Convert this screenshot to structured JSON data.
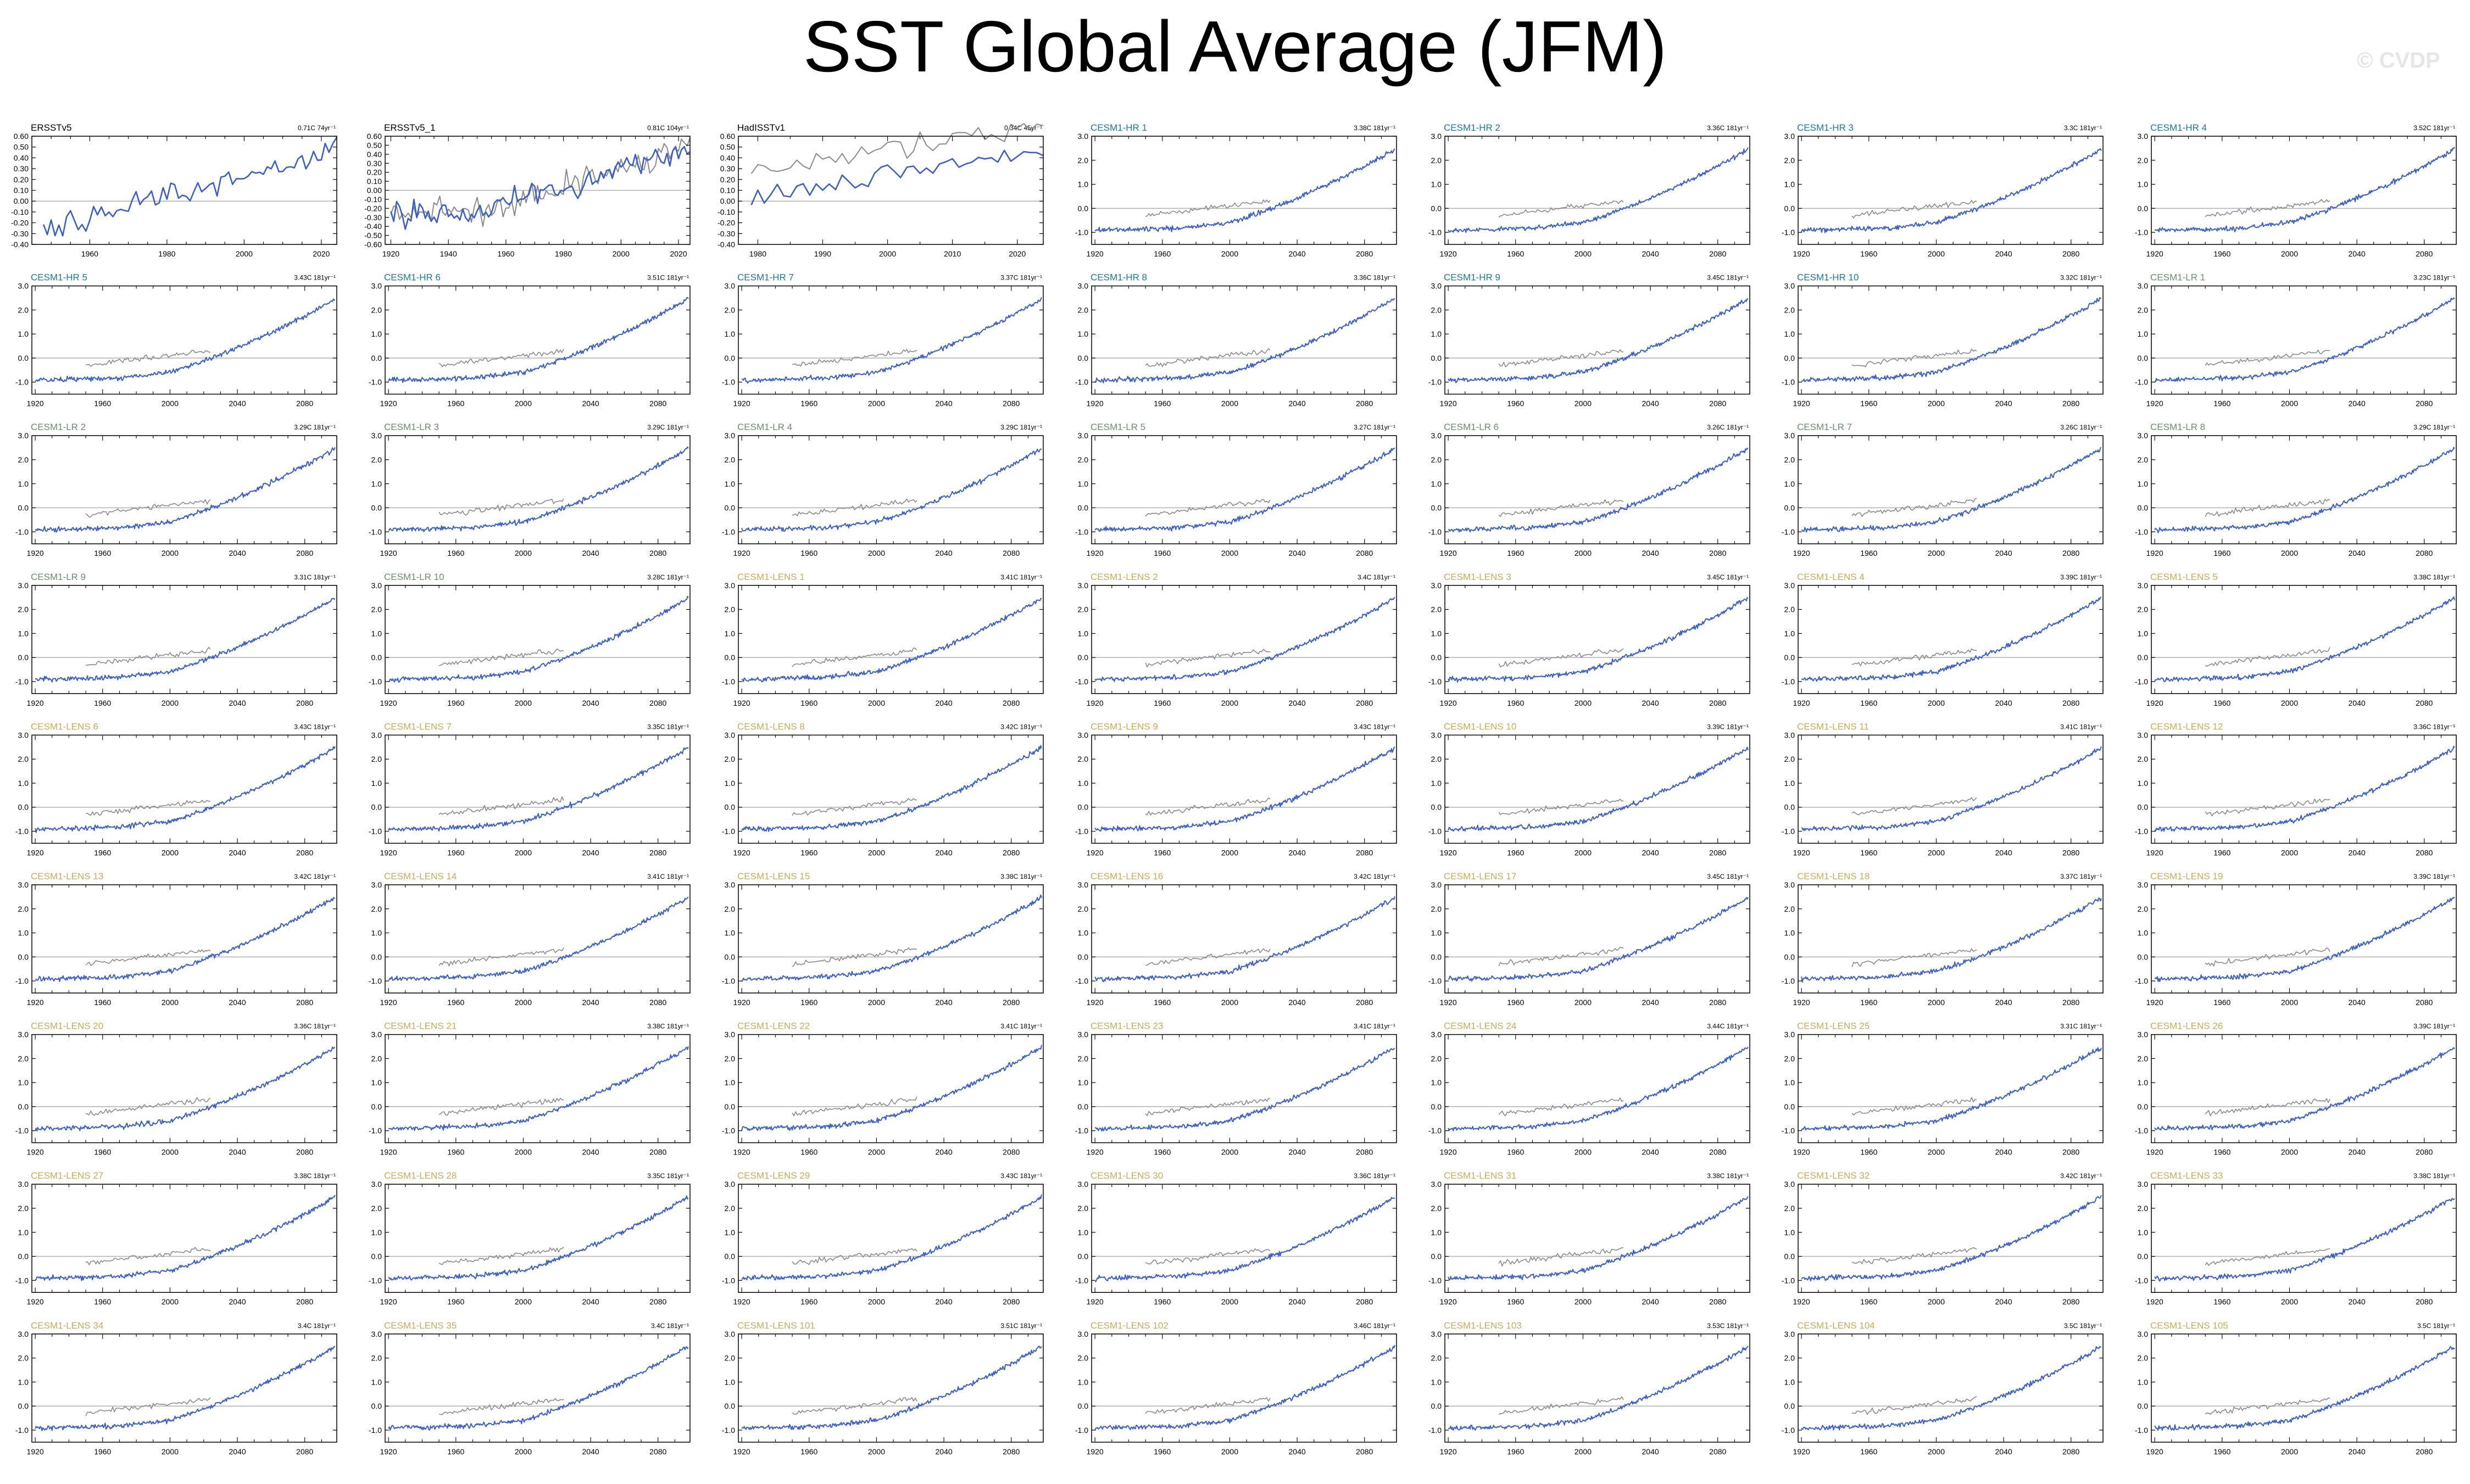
{
  "title": "SST Global Average (JFM)",
  "watermark": "© CVDP",
  "colors": {
    "series": "#3a5fcd",
    "obs_overlay": "#8a8a8a",
    "zero_line": "#b0b0b0",
    "obs_label": "#000000",
    "hr_label": "#1b7a9a",
    "lr_label": "#6b8f6e",
    "lens_label": "#c8ad55"
  },
  "chart_data": [
    {
      "type": "line",
      "name": "ERSSTv5",
      "trend": "0.71C 74yr⁻¹",
      "group": "obs",
      "xlim": [
        1945,
        2024
      ],
      "ylim": [
        -0.4,
        0.6
      ],
      "yticks": [
        -0.4,
        -0.3,
        -0.2,
        -0.1,
        0.0,
        0.1,
        0.2,
        0.3,
        0.4,
        0.5,
        0.6
      ],
      "yticklabels": [
        "-0.40",
        "-0.30",
        "-0.20",
        "-0.10",
        "0.00",
        "0.10",
        "0.20",
        "0.30",
        "0.40",
        "0.50",
        "0.60"
      ],
      "xticks": [
        1960,
        1980,
        2000,
        2020
      ]
    },
    {
      "type": "line",
      "name": "ERSSTv5_1",
      "trend": "0.81C 104yr⁻¹",
      "group": "obs",
      "xlim": [
        1918,
        2024
      ],
      "ylim": [
        -0.6,
        0.6
      ],
      "yticks": [
        -0.6,
        -0.5,
        -0.4,
        -0.3,
        -0.2,
        -0.1,
        0.0,
        0.1,
        0.2,
        0.3,
        0.4,
        0.5,
        0.6
      ],
      "yticklabels": [
        "-0.60",
        "-0.50",
        "-0.40",
        "-0.30",
        "-0.20",
        "-0.10",
        "0.00",
        "0.10",
        "0.20",
        "0.30",
        "0.40",
        "0.50",
        "0.60"
      ],
      "xticks": [
        1920,
        1940,
        1960,
        1980,
        2000,
        2020
      ]
    },
    {
      "type": "line",
      "name": "HadISSTv1",
      "trend": "0.34C 45yr⁻¹",
      "group": "obs",
      "xlim": [
        1977,
        2024
      ],
      "ylim": [
        -0.4,
        0.6
      ],
      "yticks": [
        -0.4,
        -0.3,
        -0.2,
        -0.1,
        0.0,
        0.1,
        0.2,
        0.3,
        0.4,
        0.5,
        0.6
      ],
      "yticklabels": [
        "-0.40",
        "-0.30",
        "-0.20",
        "-0.10",
        "0.00",
        "0.10",
        "0.20",
        "0.30",
        "0.40",
        "0.50",
        "0.60"
      ],
      "xticks": [
        1980,
        1990,
        2000,
        2010,
        2020
      ]
    },
    {
      "type": "line",
      "name": "CESM1-HR 1",
      "trend": "3.38C 181yr⁻¹",
      "group": "hr"
    },
    {
      "type": "line",
      "name": "CESM1-HR 2",
      "trend": "3.36C 181yr⁻¹",
      "group": "hr"
    },
    {
      "type": "line",
      "name": "CESM1-HR 3",
      "trend": "3.3C 181yr⁻¹",
      "group": "hr"
    },
    {
      "type": "line",
      "name": "CESM1-HR 4",
      "trend": "3.52C 181yr⁻¹",
      "group": "hr"
    },
    {
      "type": "line",
      "name": "CESM1-HR 5",
      "trend": "3.43C 181yr⁻¹",
      "group": "hr"
    },
    {
      "type": "line",
      "name": "CESM1-HR 6",
      "trend": "3.51C 181yr⁻¹",
      "group": "hr"
    },
    {
      "type": "line",
      "name": "CESM1-HR 7",
      "trend": "3.37C 181yr⁻¹",
      "group": "hr"
    },
    {
      "type": "line",
      "name": "CESM1-HR 8",
      "trend": "3.36C 181yr⁻¹",
      "group": "hr"
    },
    {
      "type": "line",
      "name": "CESM1-HR 9",
      "trend": "3.45C 181yr⁻¹",
      "group": "hr"
    },
    {
      "type": "line",
      "name": "CESM1-HR 10",
      "trend": "3.32C 181yr⁻¹",
      "group": "hr"
    },
    {
      "type": "line",
      "name": "CESM1-LR 1",
      "trend": "3.23C 181yr⁻¹",
      "group": "lr"
    },
    {
      "type": "line",
      "name": "CESM1-LR 2",
      "trend": "3.29C 181yr⁻¹",
      "group": "lr"
    },
    {
      "type": "line",
      "name": "CESM1-LR 3",
      "trend": "3.29C 181yr⁻¹",
      "group": "lr"
    },
    {
      "type": "line",
      "name": "CESM1-LR 4",
      "trend": "3.29C 181yr⁻¹",
      "group": "lr"
    },
    {
      "type": "line",
      "name": "CESM1-LR 5",
      "trend": "3.27C 181yr⁻¹",
      "group": "lr"
    },
    {
      "type": "line",
      "name": "CESM1-LR 6",
      "trend": "3.26C 181yr⁻¹",
      "group": "lr"
    },
    {
      "type": "line",
      "name": "CESM1-LR 7",
      "trend": "3.26C 181yr⁻¹",
      "group": "lr"
    },
    {
      "type": "line",
      "name": "CESM1-LR 8",
      "trend": "3.29C 181yr⁻¹",
      "group": "lr"
    },
    {
      "type": "line",
      "name": "CESM1-LR 9",
      "trend": "3.31C 181yr⁻¹",
      "group": "lr"
    },
    {
      "type": "line",
      "name": "CESM1-LR 10",
      "trend": "3.28C 181yr⁻¹",
      "group": "lr"
    },
    {
      "type": "line",
      "name": "CESM1-LENS 1",
      "trend": "3.41C 181yr⁻¹",
      "group": "lens"
    },
    {
      "type": "line",
      "name": "CESM1-LENS 2",
      "trend": "3.4C 181yr⁻¹",
      "group": "lens"
    },
    {
      "type": "line",
      "name": "CESM1-LENS 3",
      "trend": "3.45C 181yr⁻¹",
      "group": "lens"
    },
    {
      "type": "line",
      "name": "CESM1-LENS 4",
      "trend": "3.39C 181yr⁻¹",
      "group": "lens"
    },
    {
      "type": "line",
      "name": "CESM1-LENS 5",
      "trend": "3.38C 181yr⁻¹",
      "group": "lens"
    },
    {
      "type": "line",
      "name": "CESM1-LENS 6",
      "trend": "3.43C 181yr⁻¹",
      "group": "lens"
    },
    {
      "type": "line",
      "name": "CESM1-LENS 7",
      "trend": "3.35C 181yr⁻¹",
      "group": "lens"
    },
    {
      "type": "line",
      "name": "CESM1-LENS 8",
      "trend": "3.42C 181yr⁻¹",
      "group": "lens"
    },
    {
      "type": "line",
      "name": "CESM1-LENS 9",
      "trend": "3.43C 181yr⁻¹",
      "group": "lens"
    },
    {
      "type": "line",
      "name": "CESM1-LENS 10",
      "trend": "3.39C 181yr⁻¹",
      "group": "lens"
    },
    {
      "type": "line",
      "name": "CESM1-LENS 11",
      "trend": "3.41C 181yr⁻¹",
      "group": "lens"
    },
    {
      "type": "line",
      "name": "CESM1-LENS 12",
      "trend": "3.36C 181yr⁻¹",
      "group": "lens"
    },
    {
      "type": "line",
      "name": "CESM1-LENS 13",
      "trend": "3.42C 181yr⁻¹",
      "group": "lens"
    },
    {
      "type": "line",
      "name": "CESM1-LENS 14",
      "trend": "3.41C 181yr⁻¹",
      "group": "lens"
    },
    {
      "type": "line",
      "name": "CESM1-LENS 15",
      "trend": "3.38C 181yr⁻¹",
      "group": "lens"
    },
    {
      "type": "line",
      "name": "CESM1-LENS 16",
      "trend": "3.42C 181yr⁻¹",
      "group": "lens"
    },
    {
      "type": "line",
      "name": "CESM1-LENS 17",
      "trend": "3.45C 181yr⁻¹",
      "group": "lens"
    },
    {
      "type": "line",
      "name": "CESM1-LENS 18",
      "trend": "3.37C 181yr⁻¹",
      "group": "lens"
    },
    {
      "type": "line",
      "name": "CESM1-LENS 19",
      "trend": "3.39C 181yr⁻¹",
      "group": "lens"
    },
    {
      "type": "line",
      "name": "CESM1-LENS 20",
      "trend": "3.36C 181yr⁻¹",
      "group": "lens"
    },
    {
      "type": "line",
      "name": "CESM1-LENS 21",
      "trend": "3.38C 181yr⁻¹",
      "group": "lens"
    },
    {
      "type": "line",
      "name": "CESM1-LENS 22",
      "trend": "3.41C 181yr⁻¹",
      "group": "lens"
    },
    {
      "type": "line",
      "name": "CESM1-LENS 23",
      "trend": "3.41C 181yr⁻¹",
      "group": "lens"
    },
    {
      "type": "line",
      "name": "CESM1-LENS 24",
      "trend": "3.44C 181yr⁻¹",
      "group": "lens"
    },
    {
      "type": "line",
      "name": "CESM1-LENS 25",
      "trend": "3.31C 181yr⁻¹",
      "group": "lens"
    },
    {
      "type": "line",
      "name": "CESM1-LENS 26",
      "trend": "3.39C 181yr⁻¹",
      "group": "lens"
    },
    {
      "type": "line",
      "name": "CESM1-LENS 27",
      "trend": "3.38C 181yr⁻¹",
      "group": "lens"
    },
    {
      "type": "line",
      "name": "CESM1-LENS 28",
      "trend": "3.35C 181yr⁻¹",
      "group": "lens"
    },
    {
      "type": "line",
      "name": "CESM1-LENS 29",
      "trend": "3.43C 181yr⁻¹",
      "group": "lens"
    },
    {
      "type": "line",
      "name": "CESM1-LENS 30",
      "trend": "3.36C 181yr⁻¹",
      "group": "lens"
    },
    {
      "type": "line",
      "name": "CESM1-LENS 31",
      "trend": "3.38C 181yr⁻¹",
      "group": "lens"
    },
    {
      "type": "line",
      "name": "CESM1-LENS 32",
      "trend": "3.42C 181yr⁻¹",
      "group": "lens"
    },
    {
      "type": "line",
      "name": "CESM1-LENS 33",
      "trend": "3.38C 181yr⁻¹",
      "group": "lens"
    },
    {
      "type": "line",
      "name": "CESM1-LENS 34",
      "trend": "3.4C 181yr⁻¹",
      "group": "lens"
    },
    {
      "type": "line",
      "name": "CESM1-LENS 35",
      "trend": "3.4C 181yr⁻¹",
      "group": "lens"
    },
    {
      "type": "line",
      "name": "CESM1-LENS 101",
      "trend": "3.51C 181yr⁻¹",
      "group": "lens"
    },
    {
      "type": "line",
      "name": "CESM1-LENS 102",
      "trend": "3.46C 181yr⁻¹",
      "group": "lens"
    },
    {
      "type": "line",
      "name": "CESM1-LENS 103",
      "trend": "3.53C 181yr⁻¹",
      "group": "lens"
    },
    {
      "type": "line",
      "name": "CESM1-LENS 104",
      "trend": "3.5C 181yr⁻¹",
      "group": "lens"
    },
    {
      "type": "line",
      "name": "CESM1-LENS 105",
      "trend": "3.5C 181yr⁻¹",
      "group": "lens"
    }
  ],
  "model_axis": {
    "xlim": [
      1918,
      2099
    ],
    "ylim": [
      -1.5,
      3.0
    ],
    "yticks": [
      -1.0,
      0.0,
      1.0,
      2.0,
      3.0
    ],
    "yticklabels": [
      "-1.0",
      "0.0",
      "1.0",
      "2.0",
      "3.0"
    ],
    "xticks": [
      1920,
      1960,
      2000,
      2040,
      2080
    ]
  },
  "obs_overlay_range": [
    1950,
    2024
  ]
}
